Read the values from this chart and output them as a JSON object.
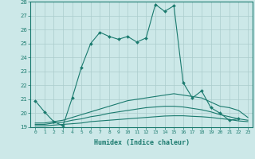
{
  "xlabel": "Humidex (Indice chaleur)",
  "background_color": "#cce8e8",
  "grid_color": "#aacccc",
  "line_color": "#1a7a6e",
  "xlim": [
    -0.5,
    23.5
  ],
  "ylim": [
    19,
    28
  ],
  "xticks": [
    0,
    1,
    2,
    3,
    4,
    5,
    6,
    7,
    8,
    9,
    10,
    11,
    12,
    13,
    14,
    15,
    16,
    17,
    18,
    19,
    20,
    21,
    22,
    23
  ],
  "yticks": [
    19,
    20,
    21,
    22,
    23,
    24,
    25,
    26,
    27,
    28
  ],
  "series": [
    {
      "x": [
        0,
        1,
        2,
        3,
        4,
        5,
        6,
        7,
        8,
        9,
        10,
        11,
        12,
        13,
        14,
        15,
        16,
        17,
        18,
        19,
        20,
        21,
        22
      ],
      "y": [
        20.9,
        20.1,
        19.4,
        19.1,
        21.1,
        23.3,
        25.0,
        25.8,
        25.5,
        25.3,
        25.5,
        25.1,
        25.4,
        27.8,
        27.3,
        27.7,
        22.2,
        21.1,
        21.6,
        20.4,
        20.0,
        19.5,
        19.6
      ],
      "marker": true
    },
    {
      "x": [
        0,
        1,
        2,
        3,
        4,
        5,
        6,
        7,
        8,
        9,
        10,
        11,
        12,
        13,
        14,
        15,
        16,
        17,
        18,
        19,
        20,
        21,
        22,
        23
      ],
      "y": [
        19.3,
        19.3,
        19.4,
        19.5,
        19.7,
        19.9,
        20.1,
        20.3,
        20.5,
        20.7,
        20.9,
        21.0,
        21.1,
        21.2,
        21.3,
        21.4,
        21.3,
        21.2,
        21.1,
        20.8,
        20.5,
        20.4,
        20.2,
        19.7
      ],
      "marker": false
    },
    {
      "x": [
        0,
        1,
        2,
        3,
        4,
        5,
        6,
        7,
        8,
        9,
        10,
        11,
        12,
        13,
        14,
        15,
        16,
        17,
        18,
        19,
        20,
        21,
        22,
        23
      ],
      "y": [
        19.2,
        19.2,
        19.3,
        19.35,
        19.5,
        19.6,
        19.75,
        19.85,
        20.0,
        20.1,
        20.2,
        20.3,
        20.4,
        20.45,
        20.5,
        20.5,
        20.45,
        20.35,
        20.25,
        20.1,
        19.9,
        19.75,
        19.6,
        19.5
      ],
      "marker": false
    },
    {
      "x": [
        0,
        1,
        2,
        3,
        4,
        5,
        6,
        7,
        8,
        9,
        10,
        11,
        12,
        13,
        14,
        15,
        16,
        17,
        18,
        19,
        20,
        21,
        22,
        23
      ],
      "y": [
        19.1,
        19.1,
        19.15,
        19.2,
        19.25,
        19.3,
        19.4,
        19.45,
        19.5,
        19.55,
        19.6,
        19.65,
        19.7,
        19.75,
        19.8,
        19.82,
        19.82,
        19.78,
        19.75,
        19.7,
        19.62,
        19.55,
        19.45,
        19.4
      ],
      "marker": false
    }
  ]
}
